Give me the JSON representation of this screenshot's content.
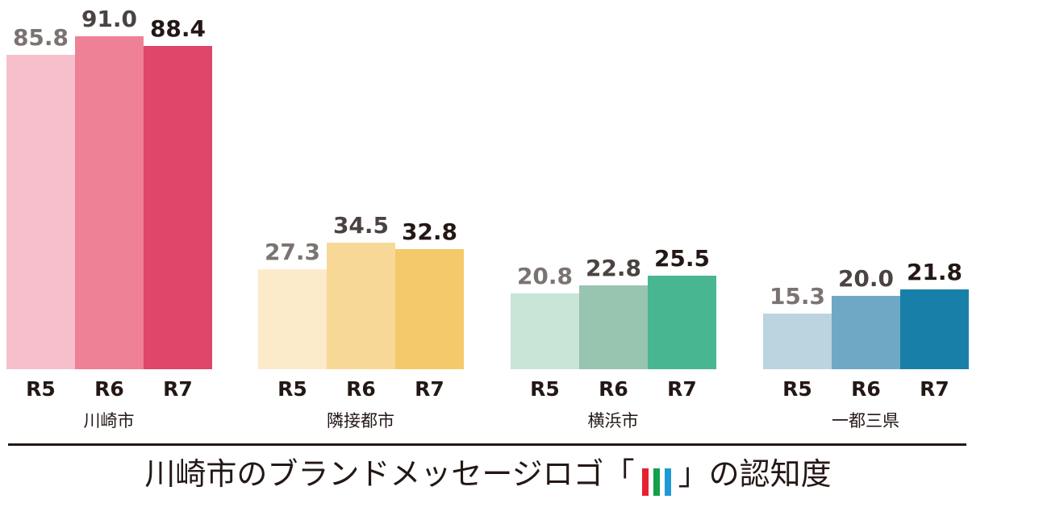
{
  "title": {
    "prefix": "川崎市のブランドメッセージロゴ「",
    "suffix": "」の認知度",
    "logo_colors": [
      "#e6212f",
      "#13a04a",
      "#1e9ad6"
    ]
  },
  "groups": [
    {
      "label": "川崎市",
      "ticks": [
        "R5",
        "R6",
        "R7"
      ],
      "values": [
        "85.8",
        "91.0",
        "88.4"
      ],
      "colors": [
        "#f7bfcc",
        "#ee8196",
        "#df4669"
      ]
    },
    {
      "label": "隣接都市",
      "ticks": [
        "R5",
        "R6",
        "R7"
      ],
      "values": [
        "27.3",
        "34.5",
        "32.8"
      ],
      "colors": [
        "#fcebcb",
        "#f8d897",
        "#f4c96b"
      ]
    },
    {
      "label": "横浜市",
      "ticks": [
        "R5",
        "R6",
        "R7"
      ],
      "values": [
        "20.8",
        "22.8",
        "25.5"
      ],
      "colors": [
        "#c8e5d8",
        "#98c5b0",
        "#48b690"
      ]
    },
    {
      "label": "一都三県",
      "ticks": [
        "R5",
        "R6",
        "R7"
      ],
      "values": [
        "15.3",
        "20.0",
        "21.8"
      ],
      "colors": [
        "#bcd4e0",
        "#6fa8c4",
        "#1880a8"
      ]
    }
  ],
  "chart_data": {
    "type": "bar",
    "title": "川崎市のブランドメッセージロゴ「」の認知度",
    "xlabel": "",
    "ylabel": "",
    "categories": [
      "川崎市",
      "隣接都市",
      "横浜市",
      "一都三県"
    ],
    "series": [
      {
        "name": "R5",
        "values": [
          85.8,
          27.3,
          20.8,
          15.3
        ]
      },
      {
        "name": "R6",
        "values": [
          91.0,
          34.5,
          22.8,
          20.0
        ]
      },
      {
        "name": "R7",
        "values": [
          88.4,
          32.8,
          25.5,
          21.8
        ]
      }
    ],
    "ylim": [
      0,
      100
    ],
    "grid": false,
    "legend": "none (series labels shown as tick labels R5/R6/R7 under each bar)",
    "data_labels": true
  }
}
